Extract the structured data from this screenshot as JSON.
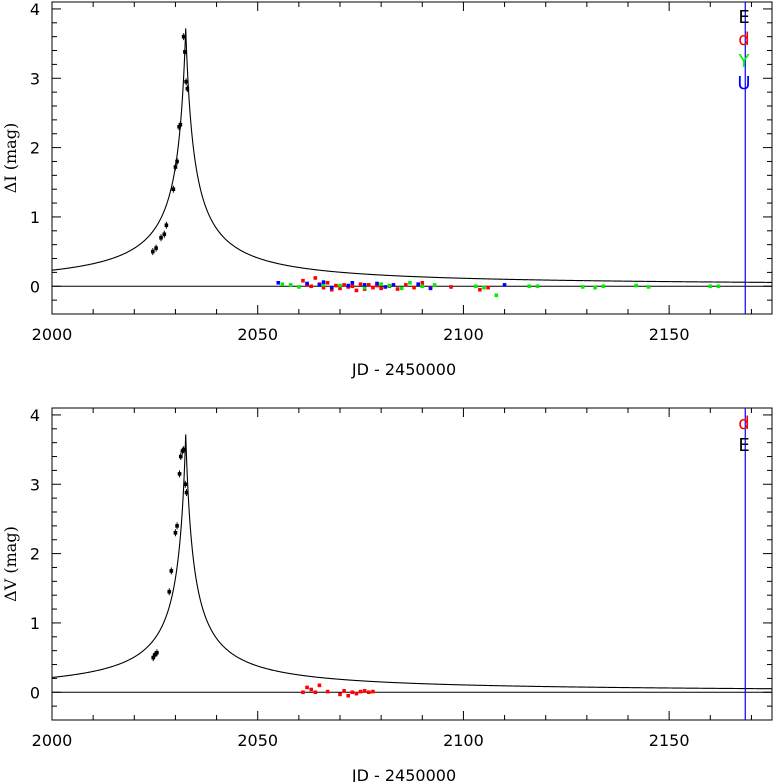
{
  "chart_data": [
    {
      "type": "scatter",
      "panel": "top",
      "xlabel": "JD - 2450000",
      "ylabel": "ΔI (mag)",
      "xlim": [
        2000,
        2175
      ],
      "ylim": [
        -0.4,
        4.1
      ],
      "x_ticks": [
        2000,
        2050,
        2100,
        2150
      ],
      "y_ticks": [
        0,
        1,
        2,
        3,
        4
      ],
      "grid": false,
      "legend_position": "top-right",
      "model_curve": {
        "peak_x": 2032.5,
        "peak_y": 3.72,
        "halfwidth": 2.16,
        "exponent": 1.0
      },
      "vertical_line": {
        "x": 2168.5,
        "color": "#0000ff"
      },
      "series": [
        {
          "name": "E",
          "color": "#000000",
          "points": [
            [
              2024.5,
              0.5
            ],
            [
              2025.3,
              0.55
            ],
            [
              2026.5,
              0.7
            ],
            [
              2027.3,
              0.75
            ],
            [
              2027.8,
              0.88
            ],
            [
              2029.5,
              1.4
            ],
            [
              2030.0,
              1.72
            ],
            [
              2030.4,
              1.8
            ],
            [
              2030.9,
              2.3
            ],
            [
              2031.2,
              2.33
            ],
            [
              2032.0,
              3.6
            ],
            [
              2032.3,
              3.38
            ],
            [
              2032.6,
              2.95
            ],
            [
              2032.9,
              2.85
            ]
          ]
        },
        {
          "name": "d",
          "color": "#ff0000",
          "points": [
            [
              2061,
              0.08
            ],
            [
              2062,
              0.02
            ],
            [
              2063,
              0.0
            ],
            [
              2064,
              0.12
            ],
            [
              2065,
              0.03
            ],
            [
              2066,
              -0.02
            ],
            [
              2067,
              0.05
            ],
            [
              2068,
              -0.05
            ],
            [
              2069,
              0.01
            ],
            [
              2070,
              -0.03
            ],
            [
              2071,
              0.02
            ],
            [
              2072,
              -0.01
            ],
            [
              2073,
              0.0
            ],
            [
              2074,
              -0.06
            ],
            [
              2075,
              0.03
            ],
            [
              2076,
              -0.04
            ],
            [
              2077,
              0.02
            ],
            [
              2078,
              -0.02
            ],
            [
              2079,
              0.01
            ],
            [
              2080,
              -0.03
            ],
            [
              2082,
              0.0
            ],
            [
              2084,
              -0.04
            ],
            [
              2086,
              0.02
            ],
            [
              2088,
              -0.02
            ],
            [
              2090,
              0.05
            ],
            [
              2092,
              -0.02
            ],
            [
              2097,
              -0.01
            ],
            [
              2104,
              -0.05
            ],
            [
              2106,
              -0.02
            ]
          ]
        },
        {
          "name": "Y",
          "color": "#00ee00",
          "points": [
            [
              2056,
              0.03
            ],
            [
              2058,
              0.02
            ],
            [
              2060,
              -0.01
            ],
            [
              2066,
              0.02
            ],
            [
              2070,
              0.01
            ],
            [
              2076,
              -0.02
            ],
            [
              2080,
              0.03
            ],
            [
              2082,
              0.01
            ],
            [
              2085,
              -0.03
            ],
            [
              2087,
              0.05
            ],
            [
              2090,
              0.0
            ],
            [
              2093,
              0.02
            ],
            [
              2103,
              0.0
            ],
            [
              2105,
              -0.02
            ],
            [
              2108,
              -0.13
            ],
            [
              2116,
              0.0
            ],
            [
              2118,
              0.0
            ],
            [
              2129,
              -0.01
            ],
            [
              2132,
              -0.02
            ],
            [
              2134,
              0.0
            ],
            [
              2142,
              0.01
            ],
            [
              2145,
              -0.01
            ],
            [
              2160,
              0.0
            ],
            [
              2162,
              0.0
            ]
          ]
        },
        {
          "name": "U",
          "color": "#0000ff",
          "points": [
            [
              2055,
              0.05
            ],
            [
              2062,
              0.04
            ],
            [
              2065,
              0.02
            ],
            [
              2066,
              0.06
            ],
            [
              2068,
              -0.02
            ],
            [
              2072,
              0.01
            ],
            [
              2073,
              0.05
            ],
            [
              2076,
              0.02
            ],
            [
              2079,
              0.04
            ],
            [
              2081,
              -0.01
            ],
            [
              2083,
              0.02
            ],
            [
              2089,
              0.03
            ],
            [
              2092,
              -0.03
            ],
            [
              2110,
              0.02
            ]
          ]
        }
      ]
    },
    {
      "type": "scatter",
      "panel": "bottom",
      "xlabel": "JD - 2450000",
      "ylabel": "ΔV (mag)",
      "xlim": [
        2000,
        2175
      ],
      "ylim": [
        -0.4,
        4.1
      ],
      "x_ticks": [
        2000,
        2050,
        2100,
        2150
      ],
      "y_ticks": [
        0,
        1,
        2,
        3,
        4
      ],
      "grid": false,
      "legend_position": "top-right",
      "model_curve": {
        "peak_x": 2032.5,
        "peak_y": 3.72,
        "halfwidth": 1.98,
        "exponent": 1.0
      },
      "vertical_line": {
        "x": 2168.5,
        "color": "#0000ff"
      },
      "series": [
        {
          "name": "d",
          "color": "#ff0000",
          "points": [
            [
              2061,
              0.0
            ],
            [
              2062,
              0.07
            ],
            [
              2063,
              0.04
            ],
            [
              2064,
              0.0
            ],
            [
              2065,
              0.1
            ],
            [
              2067,
              0.01
            ],
            [
              2070,
              -0.03
            ],
            [
              2071,
              0.02
            ],
            [
              2072,
              -0.05
            ],
            [
              2073,
              0.0
            ],
            [
              2074,
              -0.02
            ],
            [
              2075,
              0.01
            ],
            [
              2076,
              0.02
            ],
            [
              2077,
              0.0
            ],
            [
              2078,
              0.01
            ]
          ]
        },
        {
          "name": "E",
          "color": "#000000",
          "points": [
            [
              2024.6,
              0.5
            ],
            [
              2025.0,
              0.54
            ],
            [
              2025.5,
              0.57
            ],
            [
              2028.5,
              1.45
            ],
            [
              2029.0,
              1.75
            ],
            [
              2030.0,
              2.3
            ],
            [
              2030.4,
              2.4
            ],
            [
              2031.0,
              3.15
            ],
            [
              2031.3,
              3.4
            ],
            [
              2031.7,
              3.48
            ],
            [
              2032.0,
              3.5
            ],
            [
              2032.4,
              3.0
            ],
            [
              2032.7,
              2.88
            ]
          ]
        }
      ]
    }
  ]
}
